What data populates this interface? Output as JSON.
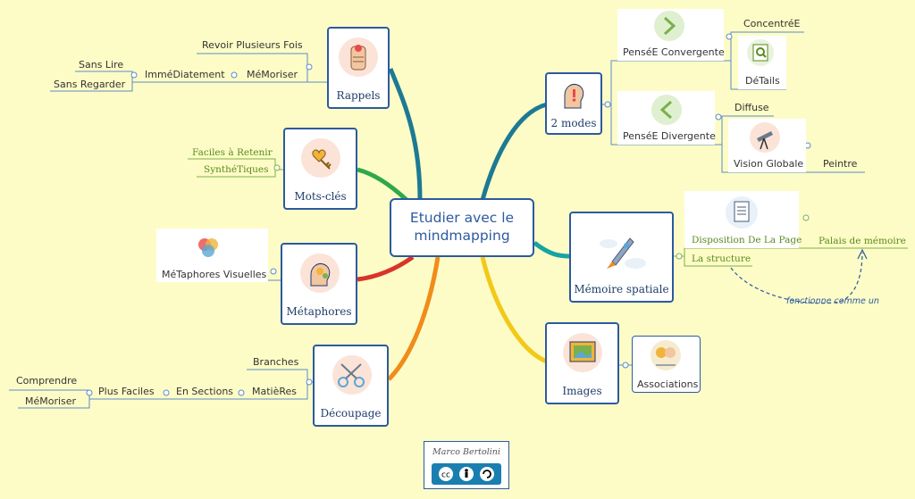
{
  "central": {
    "line1": "Etudier avec le",
    "line2": "mindmapping"
  },
  "rappels": {
    "label": "Rappels",
    "revoir": "Revoir Plusieurs Fois",
    "memoriser": "MéMoriser",
    "immediatement": "ImméDiatement",
    "sans_lire": "Sans Lire",
    "sans_regarder": "Sans Regarder"
  },
  "mots_cles": {
    "label": "Mots-clés",
    "faciles": "Faciles à Retenir",
    "synthetiques": "SynthéTiques"
  },
  "metaphores": {
    "label": "Métaphores",
    "visuelles": "MéTaphores Visuelles"
  },
  "decoupage": {
    "label": "Découpage",
    "branches": "Branches",
    "matieres": "MatièRes",
    "en_sections": "En Sections",
    "plus_faciles": "Plus Faciles",
    "comprendre": "Comprendre",
    "memoriser": "MéMoriser"
  },
  "deux_modes": {
    "label": "2 modes",
    "convergente": "PenséE Convergente",
    "concentree": "ConcentréE",
    "details": "DéTails",
    "divergente": "PenséE Divergente",
    "diffuse": "Diffuse",
    "vision_globale": "Vision Globale",
    "peintre": "Peintre"
  },
  "memoire": {
    "label": "Mémoire spatiale",
    "disposition": "Disposition De La Page",
    "structure": "La structure",
    "palais": "Palais de mémoire",
    "relation": "fonctionne comme un"
  },
  "images": {
    "label": "Images",
    "associations": "Associations"
  },
  "credit": {
    "author": "Marco Bertolini",
    "license_icons": "cc-by-sa-icons"
  },
  "colors": {
    "rappels": "#1d7a94",
    "mots_cles": "#2ea84a",
    "metaphores": "#d9342b",
    "decoupage": "#f08c1a",
    "deux_modes": "#1d7a94",
    "memoire": "#17a3a3",
    "images": "#f2c91a",
    "frame": "#2c5aa0"
  }
}
